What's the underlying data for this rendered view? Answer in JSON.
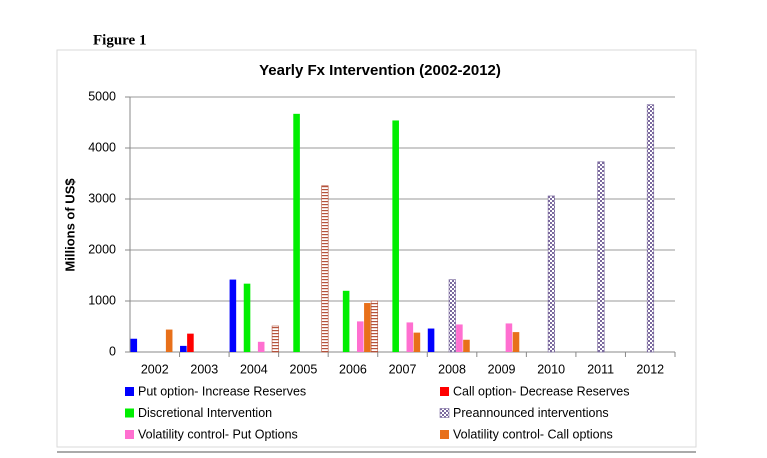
{
  "chart_data": {
    "type": "bar",
    "figure_label": "Figure 1",
    "title": "Yearly Fx Intervention (2002-2012)",
    "y_label": "Millions of US$",
    "categories": [
      "2002",
      "2003",
      "2004",
      "2005",
      "2006",
      "2007",
      "2008",
      "2009",
      "2010",
      "2011",
      "2012"
    ],
    "series": [
      {
        "name": "Put option- Increase Reserves",
        "color": "#0000ff",
        "values": [
          260,
          120,
          1420,
          null,
          null,
          null,
          460,
          null,
          null,
          null,
          null
        ]
      },
      {
        "name": "Call option- Decrease Reserves",
        "color": "#ff0000",
        "values": [
          null,
          360,
          null,
          null,
          null,
          null,
          null,
          null,
          null,
          null,
          null
        ]
      },
      {
        "name": "Discretional Intervention",
        "color": "#00ee00",
        "values": [
          null,
          null,
          1340,
          4670,
          1200,
          4540,
          null,
          null,
          null,
          null,
          null
        ]
      },
      {
        "name": "Preannounced interventions",
        "color": "#7b6a9e",
        "pattern": "checker",
        "values": [
          null,
          null,
          null,
          null,
          null,
          null,
          1420,
          null,
          3060,
          3730,
          4850
        ]
      },
      {
        "name": "Volatility control- Put Options",
        "color": "#ff6fd0",
        "values": [
          null,
          null,
          200,
          null,
          600,
          580,
          540,
          560,
          null,
          null,
          null
        ]
      },
      {
        "name": "Volatility control- Call options",
        "color": "#e8701a",
        "values": [
          440,
          null,
          null,
          null,
          960,
          380,
          240,
          390,
          null,
          null,
          null
        ]
      },
      {
        "name": null,
        "color": "#b5533c",
        "pattern": "hatch",
        "values": [
          null,
          null,
          510,
          3260,
          1000,
          null,
          null,
          null,
          null,
          null,
          null
        ]
      }
    ],
    "ylim": [
      0,
      5000
    ],
    "yticks": [
      0,
      1000,
      2000,
      3000,
      4000,
      5000
    ],
    "grid": true
  }
}
